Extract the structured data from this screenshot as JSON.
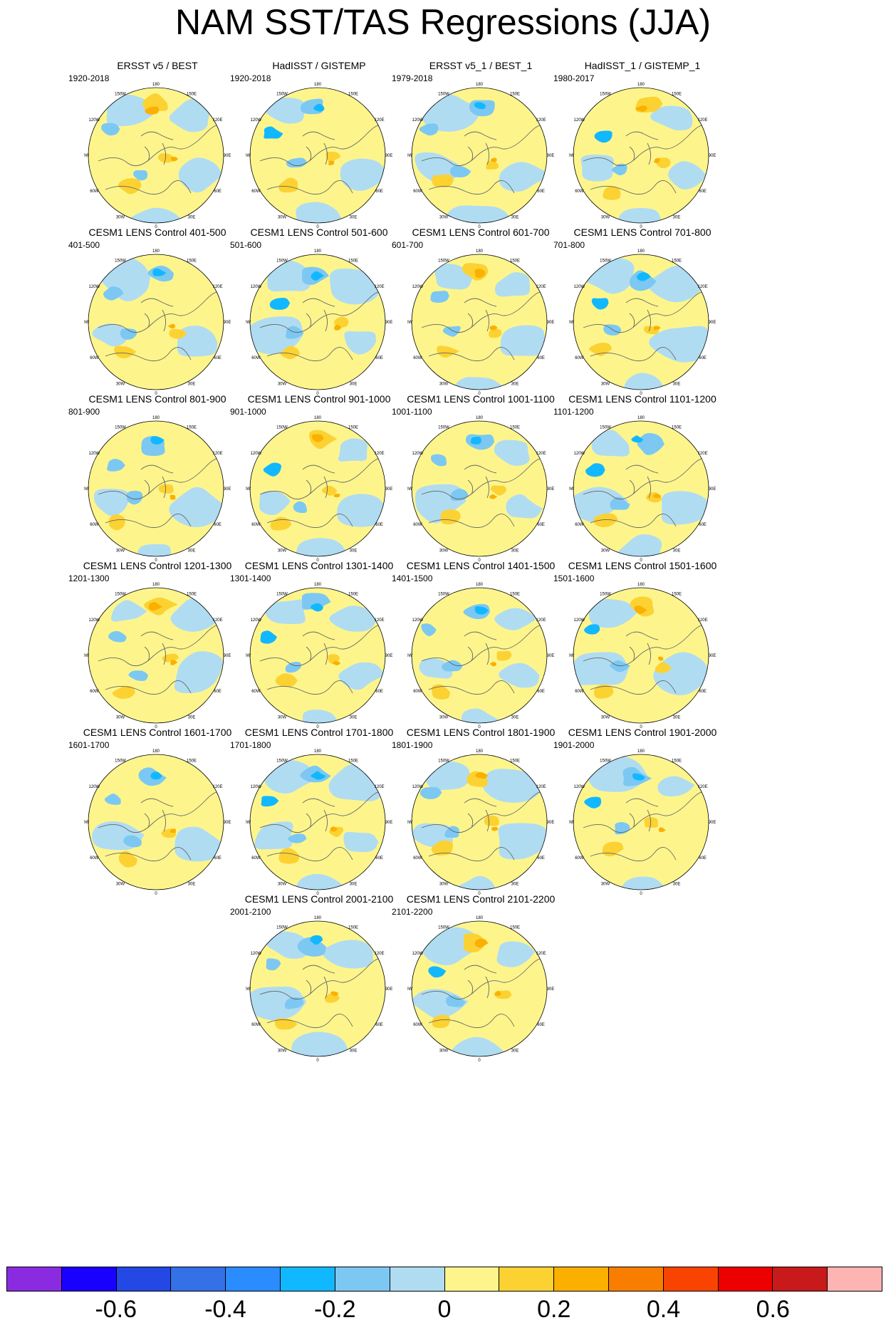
{
  "title": "NAM SST/TAS Regressions (JJA)",
  "colorbar": {
    "colors": [
      "#8a2be2",
      "#1a00ff",
      "#2348e4",
      "#3470e6",
      "#2a8cff",
      "#12b8ff",
      "#7cc8f2",
      "#b0dcf2",
      "#fdf58c",
      "#fcd232",
      "#fbb000",
      "#f97e00",
      "#f84400",
      "#ec0000",
      "#c81a1a",
      "#ffb4b4"
    ],
    "labels": [
      "-0.6",
      "-0.4",
      "-0.2",
      "0",
      "0.2",
      "0.4",
      "0.6"
    ],
    "label_values": [
      -0.6,
      -0.4,
      -0.2,
      0,
      0.2,
      0.4,
      0.6
    ],
    "levels": [
      -0.7,
      -0.6,
      -0.5,
      -0.4,
      -0.3,
      -0.2,
      -0.1,
      0,
      0.1,
      0.2,
      0.3,
      0.4,
      0.5,
      0.6,
      0.7
    ]
  },
  "lon_labels": [
    "180",
    "150E",
    "120E",
    "90E",
    "60E",
    "30E",
    "0",
    "30W",
    "60W",
    "90W",
    "120W",
    "150W"
  ],
  "panels": [
    {
      "title": "ERSST v5 / BEST",
      "period": "1920-2018"
    },
    {
      "title": "HadISST / GISTEMP",
      "period": "1920-2018"
    },
    {
      "title": "ERSST v5_1 / BEST_1",
      "period": "1979-2018"
    },
    {
      "title": "HadISST_1 / GISTEMP_1",
      "period": "1980-2017"
    },
    {
      "title": "CESM1 LENS Control 401-500",
      "period": "401-500"
    },
    {
      "title": "CESM1 LENS Control 501-600",
      "period": "501-600"
    },
    {
      "title": "CESM1 LENS Control 601-700",
      "period": "601-700"
    },
    {
      "title": "CESM1 LENS Control 701-800",
      "period": "701-800"
    },
    {
      "title": "CESM1 LENS Control 801-900",
      "period": "801-900"
    },
    {
      "title": "CESM1 LENS Control 901-1000",
      "period": "901-1000"
    },
    {
      "title": "CESM1 LENS Control 1001-1100",
      "period": "1001-1100"
    },
    {
      "title": "CESM1 LENS Control 1101-1200",
      "period": "1101-1200"
    },
    {
      "title": "CESM1 LENS Control 1201-1300",
      "period": "1201-1300"
    },
    {
      "title": "CESM1 LENS Control 1301-1400",
      "period": "1301-1400"
    },
    {
      "title": "CESM1 LENS Control 1401-1500",
      "period": "1401-1500"
    },
    {
      "title": "CESM1 LENS Control 1501-1600",
      "period": "1501-1600"
    },
    {
      "title": "CESM1 LENS Control 1601-1700",
      "period": "1601-1700"
    },
    {
      "title": "CESM1 LENS Control 1701-1800",
      "period": "1701-1800"
    },
    {
      "title": "CESM1 LENS Control 1801-1900",
      "period": "1801-1900"
    },
    {
      "title": "CESM1 LENS Control 1901-2000",
      "period": "1901-2000"
    },
    {
      "title": "CESM1 LENS Control 2001-2100",
      "period": "2001-2100"
    },
    {
      "title": "CESM1 LENS Control 2101-2200",
      "period": "2101-2200"
    }
  ]
}
